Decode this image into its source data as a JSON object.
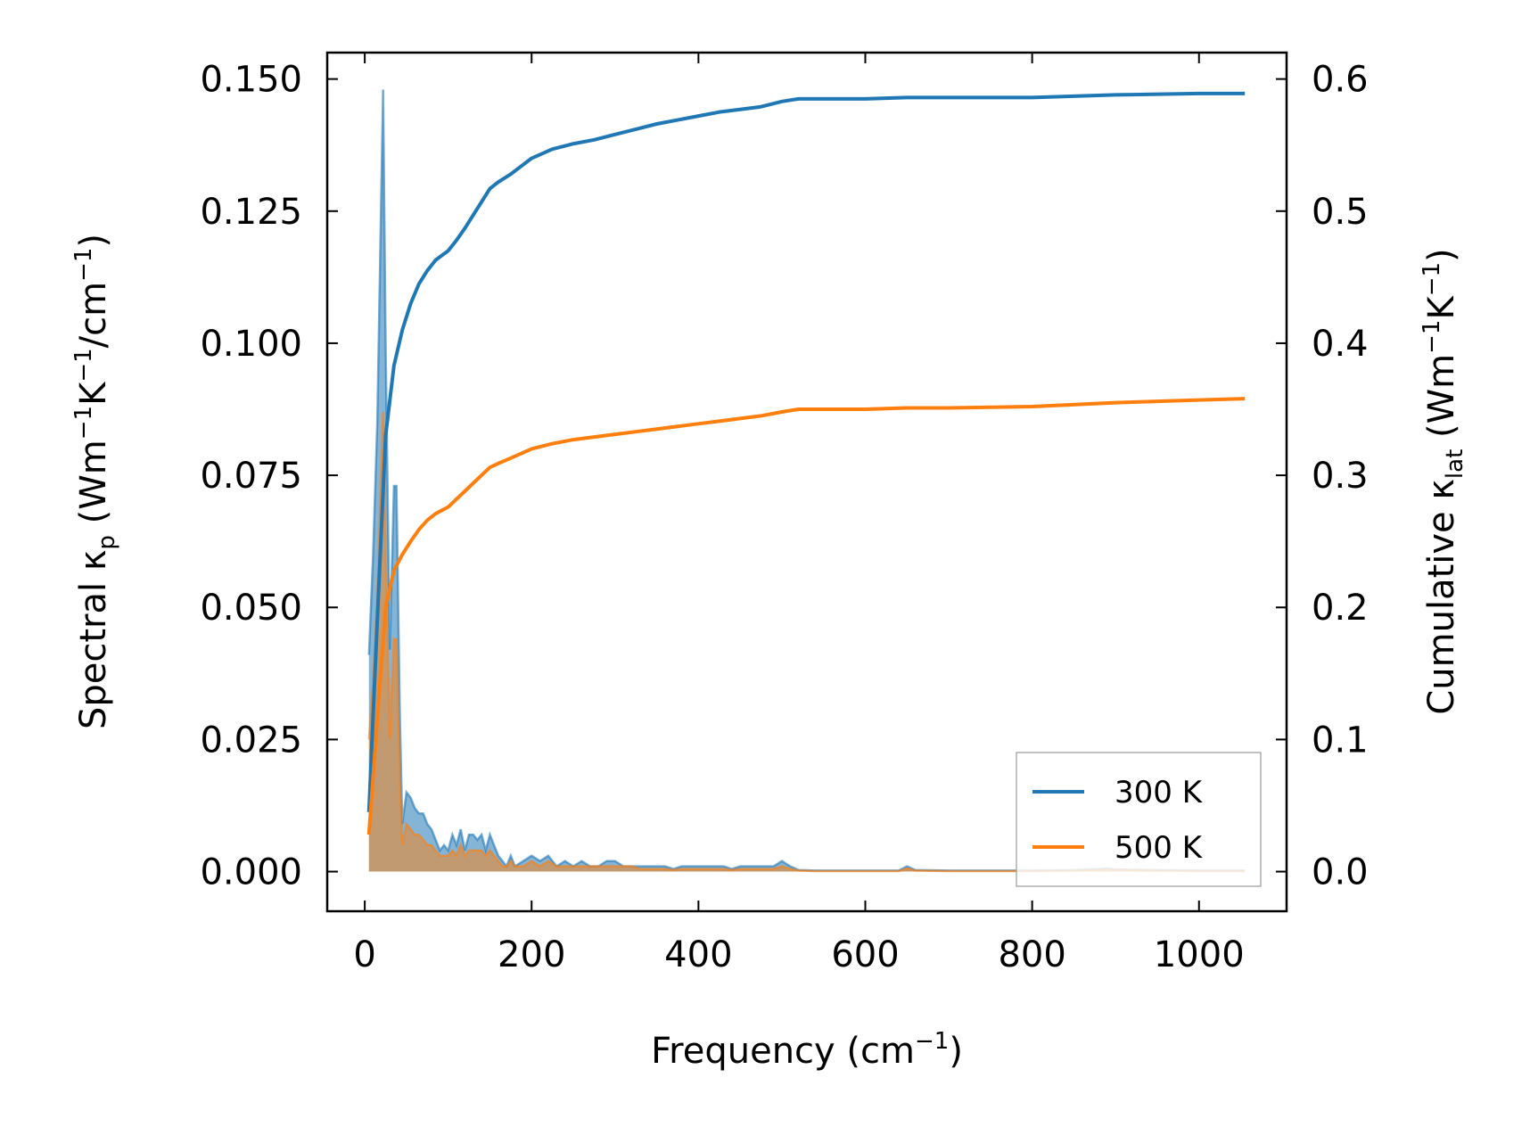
{
  "chart_data": {
    "type": "line",
    "title": "",
    "xlabel": "Frequency (cm",
    "xlabel_sup": "−1",
    "xlabel_tail": ")",
    "ylabel_left": {
      "prefix": "Spectral κ",
      "sub": "p",
      "middle1": " (Wm",
      "sup1": "−1",
      "middle2": "K",
      "sup2": "−1",
      "middle3": "/cm",
      "sup3": "−1",
      "tail": ")"
    },
    "ylabel_right": {
      "prefix": "Cumulative κ",
      "sub": "lat",
      "middle1": " (Wm",
      "sup1": "−1",
      "middle2": "K",
      "sup2": "−1",
      "tail": ")"
    },
    "xlim": [
      -45,
      1105
    ],
    "ylim_left": [
      -0.0075,
      0.155
    ],
    "ylim_right": [
      -0.03,
      0.62
    ],
    "xticks": [
      0,
      200,
      400,
      600,
      800,
      1000
    ],
    "xtick_labels": [
      "0",
      "200",
      "400",
      "600",
      "800",
      "1000"
    ],
    "yticks_left": [
      0.0,
      0.025,
      0.05,
      0.075,
      0.1,
      0.125,
      0.15
    ],
    "ytick_labels_left": [
      "0.000",
      "0.025",
      "0.050",
      "0.075",
      "0.100",
      "0.125",
      "0.150"
    ],
    "yticks_right": [
      0.0,
      0.1,
      0.2,
      0.3,
      0.4,
      0.5,
      0.6
    ],
    "ytick_labels_right": [
      "0.0",
      "0.1",
      "0.2",
      "0.3",
      "0.4",
      "0.5",
      "0.6"
    ],
    "legend": {
      "position": "lower-right",
      "entries": [
        "300 K",
        "500 K"
      ]
    },
    "colors": {
      "300 K": "#1f77b4",
      "500 K": "#ff7f0e"
    },
    "spectral": {
      "300 K": {
        "x": [
          5,
          10,
          15,
          20,
          22,
          25,
          30,
          35,
          38,
          42,
          45,
          50,
          55,
          60,
          65,
          70,
          75,
          80,
          85,
          90,
          95,
          100,
          105,
          110,
          115,
          120,
          125,
          130,
          135,
          140,
          145,
          150,
          155,
          160,
          165,
          170,
          175,
          180,
          190,
          200,
          210,
          220,
          230,
          240,
          250,
          260,
          270,
          280,
          290,
          300,
          310,
          320,
          330,
          340,
          350,
          360,
          370,
          380,
          390,
          400,
          410,
          420,
          430,
          440,
          450,
          460,
          470,
          480,
          490,
          500,
          510,
          520,
          540,
          560,
          600,
          640,
          650,
          660,
          700,
          750,
          800,
          850,
          880,
          890,
          900,
          950,
          1000,
          1055
        ],
        "y": [
          0.041,
          0.06,
          0.085,
          0.13,
          0.148,
          0.1,
          0.042,
          0.073,
          0.073,
          0.03,
          0.009,
          0.015,
          0.014,
          0.012,
          0.011,
          0.011,
          0.009,
          0.008,
          0.006,
          0.004,
          0.005,
          0.004,
          0.007,
          0.005,
          0.008,
          0.004,
          0.007,
          0.007,
          0.006,
          0.007,
          0.004,
          0.007,
          0.005,
          0.003,
          0.002,
          0.001,
          0.003,
          0.001,
          0.002,
          0.003,
          0.002,
          0.003,
          0.001,
          0.002,
          0.001,
          0.002,
          0.001,
          0.001,
          0.002,
          0.002,
          0.001,
          0.001,
          0.001,
          0.001,
          0.001,
          0.001,
          0.0005,
          0.001,
          0.001,
          0.001,
          0.001,
          0.001,
          0.001,
          0.0005,
          0.001,
          0.001,
          0.001,
          0.001,
          0.001,
          0.002,
          0.001,
          0.0003,
          0.0002,
          0.0002,
          0.0002,
          0.0002,
          0.001,
          0.0003,
          0.0002,
          0.0002,
          0.0002,
          0.0003,
          0.0005,
          0.0006,
          0.0004,
          0.0003,
          0.0002,
          0.0002
        ]
      },
      "500 K": {
        "x": [
          5,
          10,
          15,
          20,
          22,
          25,
          30,
          35,
          38,
          42,
          45,
          50,
          55,
          60,
          65,
          70,
          75,
          80,
          85,
          90,
          95,
          100,
          105,
          110,
          115,
          120,
          125,
          130,
          135,
          140,
          145,
          150,
          155,
          160,
          165,
          170,
          175,
          180,
          190,
          200,
          210,
          220,
          230,
          240,
          250,
          260,
          270,
          280,
          290,
          300,
          310,
          320,
          330,
          340,
          350,
          360,
          370,
          380,
          390,
          400,
          410,
          420,
          430,
          440,
          450,
          460,
          470,
          480,
          490,
          500,
          510,
          520,
          540,
          560,
          600,
          640,
          650,
          660,
          700,
          750,
          800,
          850,
          880,
          890,
          900,
          950,
          1000,
          1055
        ],
        "y": [
          0.025,
          0.036,
          0.051,
          0.078,
          0.087,
          0.06,
          0.025,
          0.044,
          0.044,
          0.018,
          0.005,
          0.009,
          0.008,
          0.007,
          0.007,
          0.006,
          0.005,
          0.005,
          0.004,
          0.003,
          0.003,
          0.003,
          0.004,
          0.003,
          0.005,
          0.003,
          0.004,
          0.004,
          0.004,
          0.004,
          0.003,
          0.004,
          0.003,
          0.002,
          0.001,
          0.001,
          0.002,
          0.001,
          0.001,
          0.002,
          0.001,
          0.002,
          0.001,
          0.001,
          0.001,
          0.001,
          0.001,
          0.001,
          0.001,
          0.001,
          0.001,
          0.001,
          0.0005,
          0.0005,
          0.0005,
          0.0005,
          0.0003,
          0.0005,
          0.0005,
          0.0005,
          0.0005,
          0.0005,
          0.0005,
          0.0003,
          0.0005,
          0.0005,
          0.0005,
          0.0005,
          0.0005,
          0.001,
          0.0005,
          0.0002,
          0.0001,
          0.0001,
          0.0001,
          0.0001,
          0.0006,
          0.0002,
          0.0001,
          0.0001,
          0.0001,
          0.0002,
          0.0003,
          0.0004,
          0.0003,
          0.0002,
          0.0001,
          0.0001
        ]
      }
    },
    "cumulative": {
      "300 K": {
        "x": [
          5,
          15,
          25,
          35,
          45,
          55,
          65,
          75,
          85,
          100,
          110,
          120,
          130,
          140,
          150,
          160,
          175,
          200,
          225,
          250,
          275,
          300,
          325,
          350,
          375,
          400,
          425,
          450,
          475,
          500,
          520,
          550,
          600,
          650,
          700,
          800,
          900,
          1000,
          1055
        ],
        "y": [
          0.045,
          0.19,
          0.33,
          0.383,
          0.41,
          0.43,
          0.445,
          0.455,
          0.463,
          0.47,
          0.478,
          0.487,
          0.497,
          0.507,
          0.517,
          0.522,
          0.528,
          0.54,
          0.547,
          0.551,
          0.554,
          0.558,
          0.562,
          0.566,
          0.569,
          0.572,
          0.575,
          0.577,
          0.579,
          0.583,
          0.585,
          0.585,
          0.585,
          0.586,
          0.586,
          0.586,
          0.588,
          0.589,
          0.589
        ]
      },
      "500 K": {
        "x": [
          5,
          15,
          25,
          35,
          45,
          55,
          65,
          75,
          85,
          100,
          110,
          120,
          130,
          140,
          150,
          160,
          175,
          200,
          225,
          250,
          275,
          300,
          325,
          350,
          375,
          400,
          425,
          450,
          475,
          500,
          520,
          550,
          600,
          650,
          700,
          800,
          900,
          1000,
          1055
        ],
        "y": [
          0.028,
          0.115,
          0.2,
          0.228,
          0.24,
          0.25,
          0.259,
          0.266,
          0.271,
          0.276,
          0.282,
          0.288,
          0.294,
          0.3,
          0.306,
          0.309,
          0.313,
          0.32,
          0.324,
          0.327,
          0.329,
          0.331,
          0.333,
          0.335,
          0.337,
          0.339,
          0.341,
          0.343,
          0.345,
          0.348,
          0.35,
          0.35,
          0.35,
          0.351,
          0.351,
          0.352,
          0.355,
          0.357,
          0.358
        ]
      }
    }
  }
}
